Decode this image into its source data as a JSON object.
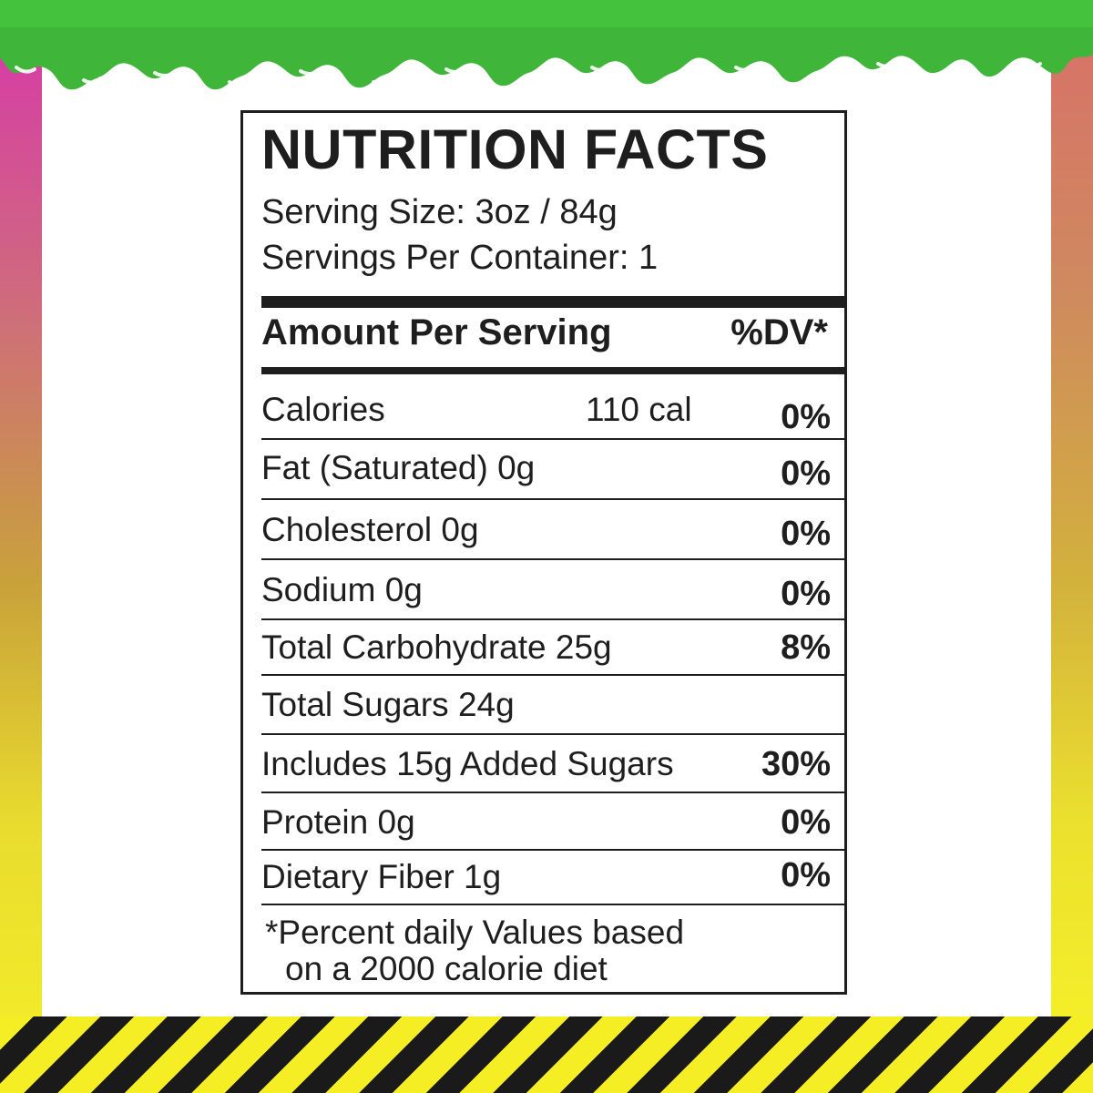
{
  "colors": {
    "slime": "#3fb53a",
    "label_ink": "#1e1e1e",
    "hazard_yellow": "#f5ee24",
    "hazard_black": "#1a1a1a"
  },
  "label": {
    "title": "NUTRITION FACTS",
    "serving_size": "Serving Size: 3oz / 84g",
    "servings_per_container": "Servings Per Container: 1",
    "amount_header": "Amount Per Serving",
    "dv_header": "%DV*",
    "calories": {
      "name": "Calories",
      "amount": "110 cal",
      "dv": "0%"
    },
    "rows": [
      {
        "name": "Fat (Saturated)  0g",
        "dv": "0%"
      },
      {
        "name": "Cholesterol  0g",
        "dv": "0%"
      },
      {
        "name": "Sodium  0g",
        "dv": "0%"
      },
      {
        "name": "Total Carbohydrate  25g",
        "dv": "8%"
      },
      {
        "name": "Total Sugars  24g",
        "dv": ""
      },
      {
        "name": "Includes 15g Added Sugars",
        "dv": "30%"
      },
      {
        "name": "Protein  0g",
        "dv": "0%"
      },
      {
        "name": "Dietary Fiber  1g",
        "dv": "0%"
      }
    ],
    "footnote_line1": "*Percent daily Values based",
    "footnote_line2": "on a 2000 calorie diet"
  }
}
